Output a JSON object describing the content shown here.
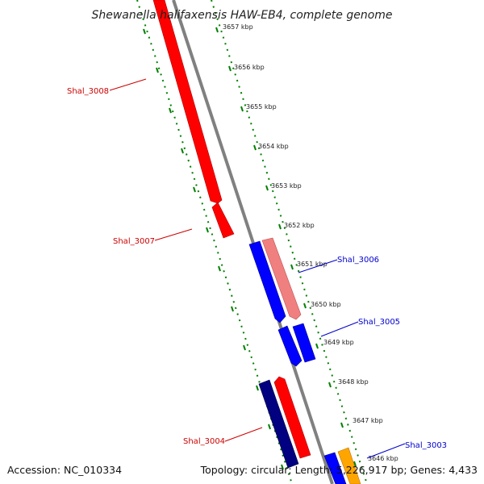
{
  "title": "Shewanella halifaxensis HAW-EB4, complete genome",
  "accession": "Accession: NC_010334",
  "topology": "Topology: circular; Length: 5,226,917 bp; Genes: 4,433",
  "colors": {
    "forward_gene": "#ff0000",
    "forward_gene_light": "#f08080",
    "reverse_gene": "#0000ff",
    "reverse_gene_dark": "#000080",
    "orange_gene": "#ffa500",
    "backbone": "#808080",
    "tick": "#008000",
    "label_forward": "#cc0000",
    "label_reverse": "#0000cc"
  },
  "scale_labels": [
    "3657 kbp",
    "3656 kbp",
    "3655 kbp",
    "3654 kbp",
    "3653 kbp",
    "3652 kbp",
    "3651 kbp",
    "3650 kbp",
    "3649 kbp",
    "3648 kbp",
    "3647 kbp",
    "3646 kbp"
  ],
  "gene_labels": {
    "shal_3008": "Shal_3008",
    "shal_3007": "Shal_3007",
    "shal_3006": "Shal_3006",
    "shal_3005": "Shal_3005",
    "shal_3004": "Shal_3004",
    "shal_3003": "Shal_3003"
  }
}
